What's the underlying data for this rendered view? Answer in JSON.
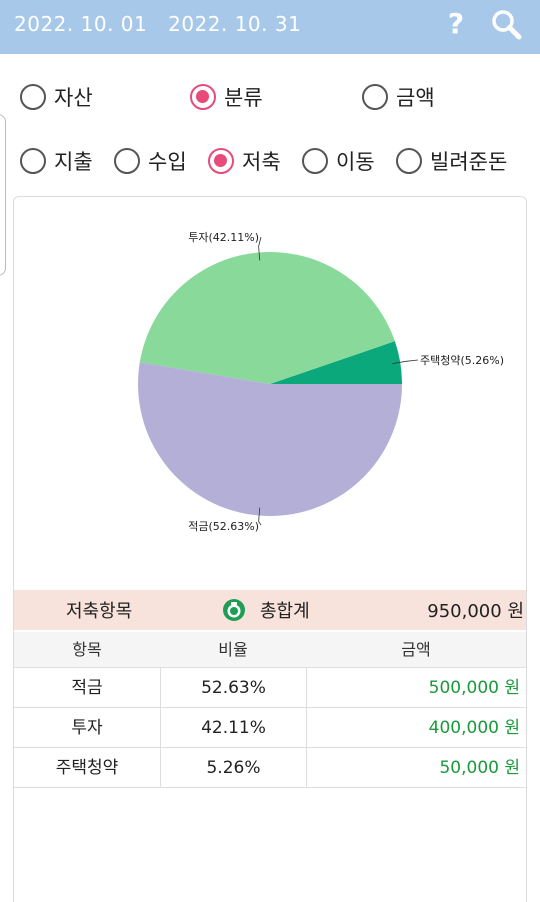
{
  "header": {
    "start_date": "2022. 10. 01",
    "end_date": "2022. 10. 31",
    "help_icon": "question-icon",
    "search_icon": "search-icon"
  },
  "view_mode": {
    "options": [
      {
        "label": "자산",
        "checked": false
      },
      {
        "label": "분류",
        "checked": true
      },
      {
        "label": "금액",
        "checked": false
      }
    ]
  },
  "type_filter": {
    "options": [
      {
        "label": "지출",
        "checked": false
      },
      {
        "label": "수입",
        "checked": false
      },
      {
        "label": "저축",
        "checked": true
      },
      {
        "label": "이동",
        "checked": false
      },
      {
        "label": "빌려준돈",
        "checked": false
      }
    ]
  },
  "chart_data": {
    "type": "pie",
    "title": "",
    "slices": [
      {
        "label": "주택청약(5.26%)",
        "name": "주택청약",
        "value": 5.26,
        "color": "#0aa87a"
      },
      {
        "label": "투자(42.11%)",
        "name": "투자",
        "value": 42.11,
        "color": "#88d99a"
      },
      {
        "label": "적금(52.63%)",
        "name": "적금",
        "value": 52.63,
        "color": "#b3afd6"
      }
    ]
  },
  "summary": {
    "label": "저축항목",
    "total_label": "총합계",
    "total_amount": "950,000 원",
    "icon": "money-bag-icon"
  },
  "table": {
    "headers": [
      "항목",
      "비율",
      "금액"
    ],
    "rows": [
      {
        "item": "적금",
        "ratio": "52.63%",
        "amount": "500,000 원"
      },
      {
        "item": "투자",
        "ratio": "42.11%",
        "amount": "400,000 원"
      },
      {
        "item": "주택청약",
        "ratio": "5.26%",
        "amount": "50,000 원"
      }
    ]
  },
  "colors": {
    "header_bg": "#a8c8ea",
    "radio_accent": "#e84a7a",
    "summary_bg": "#f8e2dc",
    "amount_green": "#1a9a3a"
  }
}
